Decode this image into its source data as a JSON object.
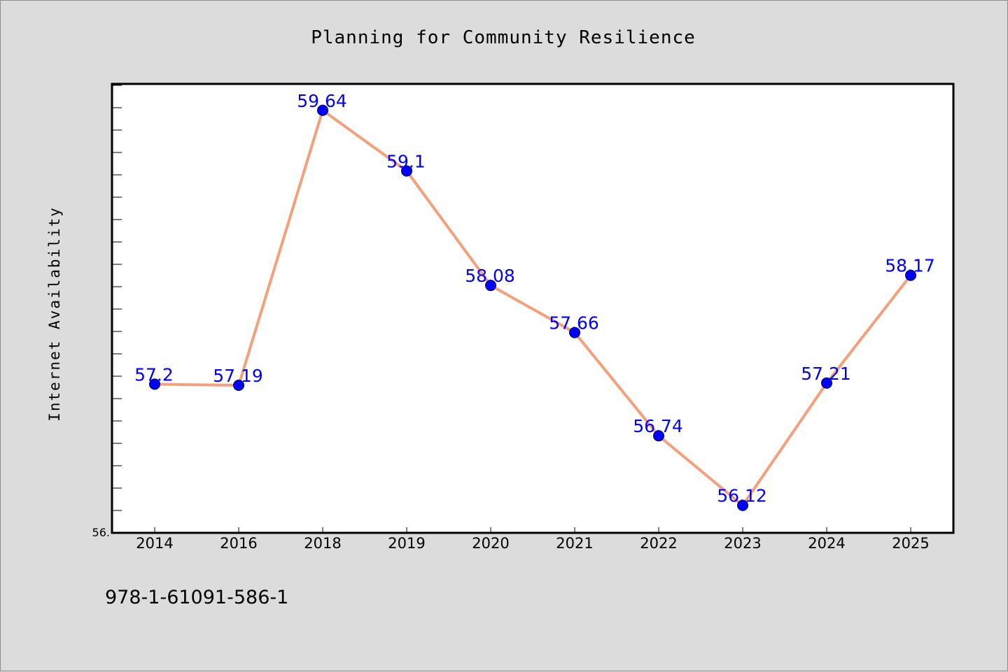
{
  "chart_data": {
    "type": "line",
    "title": "Planning for Community Resilience",
    "ylabel": "Internet Availability",
    "xlabel": "",
    "categories": [
      "2014",
      "2016",
      "2018",
      "2019",
      "2020",
      "2021",
      "2022",
      "2023",
      "2024",
      "2025"
    ],
    "series": [
      {
        "values": [
          57.2,
          57.19,
          59.64,
          59.1,
          58.08,
          57.66,
          56.74,
          56.12,
          57.21,
          58.17
        ],
        "point_labels": [
          "57.2",
          "57.19",
          "59.64",
          "59.1",
          "58.08",
          "57.66",
          "56.74",
          "56.12",
          "57.21",
          "58.17"
        ]
      }
    ],
    "ylim": [
      56.0,
      60.0
    ],
    "ytick_label": "56.",
    "grid": false,
    "line_color": "#f5a07a",
    "marker_color": "#0000ff",
    "label_color": "#0000ff"
  },
  "footer": {
    "isbn": "978-1-61091-586-1"
  }
}
